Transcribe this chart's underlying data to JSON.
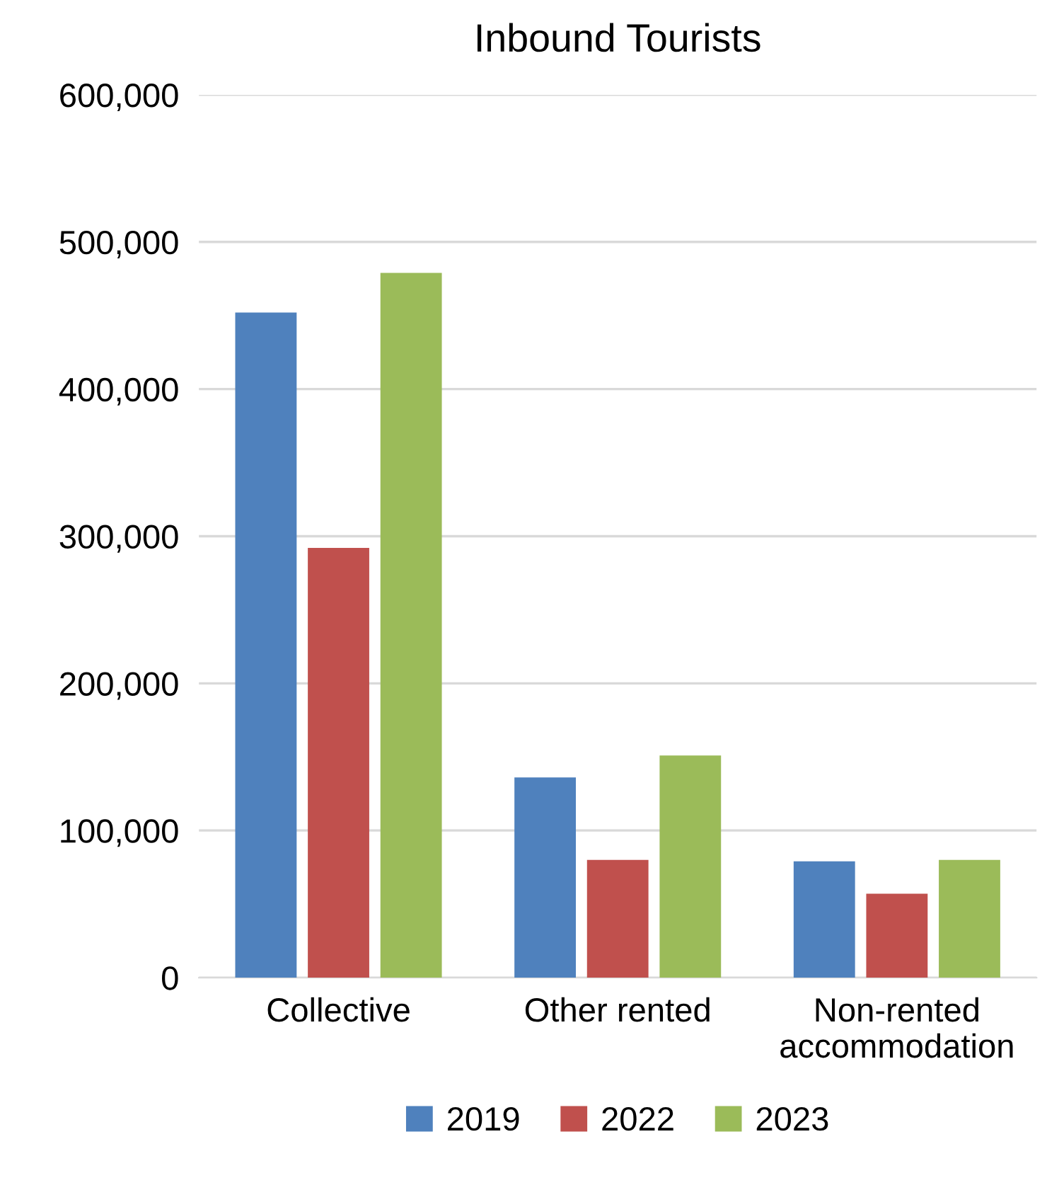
{
  "chart_data": {
    "type": "bar",
    "title": "Inbound Tourists",
    "categories": [
      "Collective",
      "Other rented",
      "Non-rented\naccommodation"
    ],
    "series": [
      {
        "name": "2019",
        "color": "#4f81bd",
        "values": [
          452000,
          136000,
          79000
        ]
      },
      {
        "name": "2022",
        "color": "#c0504d",
        "values": [
          292000,
          80000,
          57000
        ]
      },
      {
        "name": "2023",
        "color": "#9bbb59",
        "values": [
          479000,
          151000,
          80000
        ]
      }
    ],
    "ylim": [
      0,
      600000
    ],
    "yticks": [
      {
        "value": 0,
        "label": "0"
      },
      {
        "value": 100000,
        "label": "100,000"
      },
      {
        "value": 200000,
        "label": "200,000"
      },
      {
        "value": 300000,
        "label": "300,000"
      },
      {
        "value": 400000,
        "label": "400,000"
      },
      {
        "value": 500000,
        "label": "500,000"
      },
      {
        "value": 600000,
        "label": "600,000"
      }
    ],
    "grid": "y",
    "legend": "bottom"
  }
}
